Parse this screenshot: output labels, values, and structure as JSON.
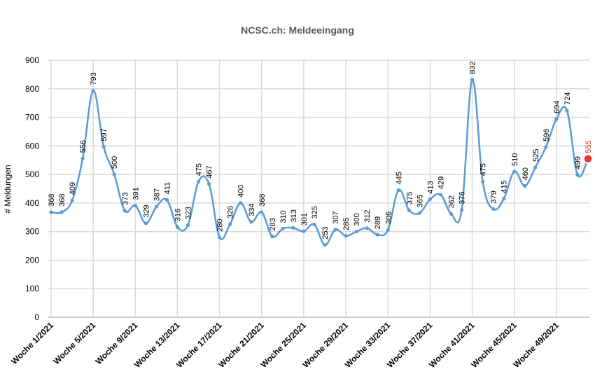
{
  "chart_data": {
    "type": "line",
    "title": "NCSC.ch: Meldeeingang",
    "ylabel": "# Meldungen",
    "xlabel": "",
    "ylim": [
      0,
      900
    ],
    "yticks": [
      0,
      100,
      200,
      300,
      400,
      500,
      600,
      700,
      800,
      900
    ],
    "grid": true,
    "legend": "none",
    "line_color": "#5b9bd5",
    "highlight_color": "#e8362b",
    "x_tick_labels": [
      {
        "week": 1,
        "label": "Woche 1/2021"
      },
      {
        "week": 5,
        "label": "Woche 5/2021"
      },
      {
        "week": 9,
        "label": "Woche 9/2021"
      },
      {
        "week": 13,
        "label": "Woche 13/2021"
      },
      {
        "week": 17,
        "label": "Woche 17/2021"
      },
      {
        "week": 21,
        "label": "Woche 21/2021"
      },
      {
        "week": 25,
        "label": "Woche 25/2021"
      },
      {
        "week": 29,
        "label": "Woche 29/2021"
      },
      {
        "week": 33,
        "label": "Woche 33/2021"
      },
      {
        "week": 37,
        "label": "Woche 37/2021"
      },
      {
        "week": 41,
        "label": "Woche 41/2021"
      },
      {
        "week": 45,
        "label": "Woche 45/2021"
      },
      {
        "week": 49,
        "label": "Woche 49/2021"
      }
    ],
    "series": [
      {
        "weeks": [
          1,
          2,
          3,
          4,
          5,
          6,
          7,
          8,
          9,
          10,
          11,
          12,
          13,
          14,
          15,
          16,
          17,
          18,
          19,
          20,
          21,
          22,
          23,
          24,
          25,
          26,
          27,
          28,
          29,
          30,
          31,
          32,
          33,
          34,
          35,
          36,
          37,
          38,
          39,
          40,
          41,
          42,
          43,
          44,
          45,
          46,
          47,
          48,
          49,
          50,
          51,
          52
        ],
        "values": [
          368,
          368,
          409,
          556,
          793,
          597,
          500,
          373,
          391,
          329,
          387,
          411,
          316,
          323,
          475,
          467,
          280,
          326,
          400,
          334,
          368,
          283,
          310,
          313,
          301,
          325,
          253,
          307,
          285,
          300,
          312,
          289,
          306,
          445,
          375,
          365,
          413,
          429,
          362,
          376,
          832,
          475,
          379,
          415,
          510,
          460,
          525,
          596,
          694,
          724,
          499,
          555
        ],
        "labels": [
          "368",
          "368",
          "409",
          "556",
          "793",
          "597",
          "500",
          "373",
          "391",
          "329",
          "387",
          "411",
          "316",
          "323",
          "475",
          "467",
          "280",
          "326",
          "400",
          "334",
          "368",
          "283",
          "310",
          "313",
          "301",
          "325",
          "253",
          "307",
          "285",
          "300",
          "312",
          "289",
          "306",
          "445",
          "375",
          "365",
          "413",
          "429",
          "362",
          "376",
          "832",
          "475",
          "379",
          "415",
          "510",
          "460",
          "525",
          "596",
          "694",
          "724",
          "499",
          "555"
        ]
      }
    ],
    "highlight_point": {
      "week": 52,
      "value": 555
    }
  }
}
